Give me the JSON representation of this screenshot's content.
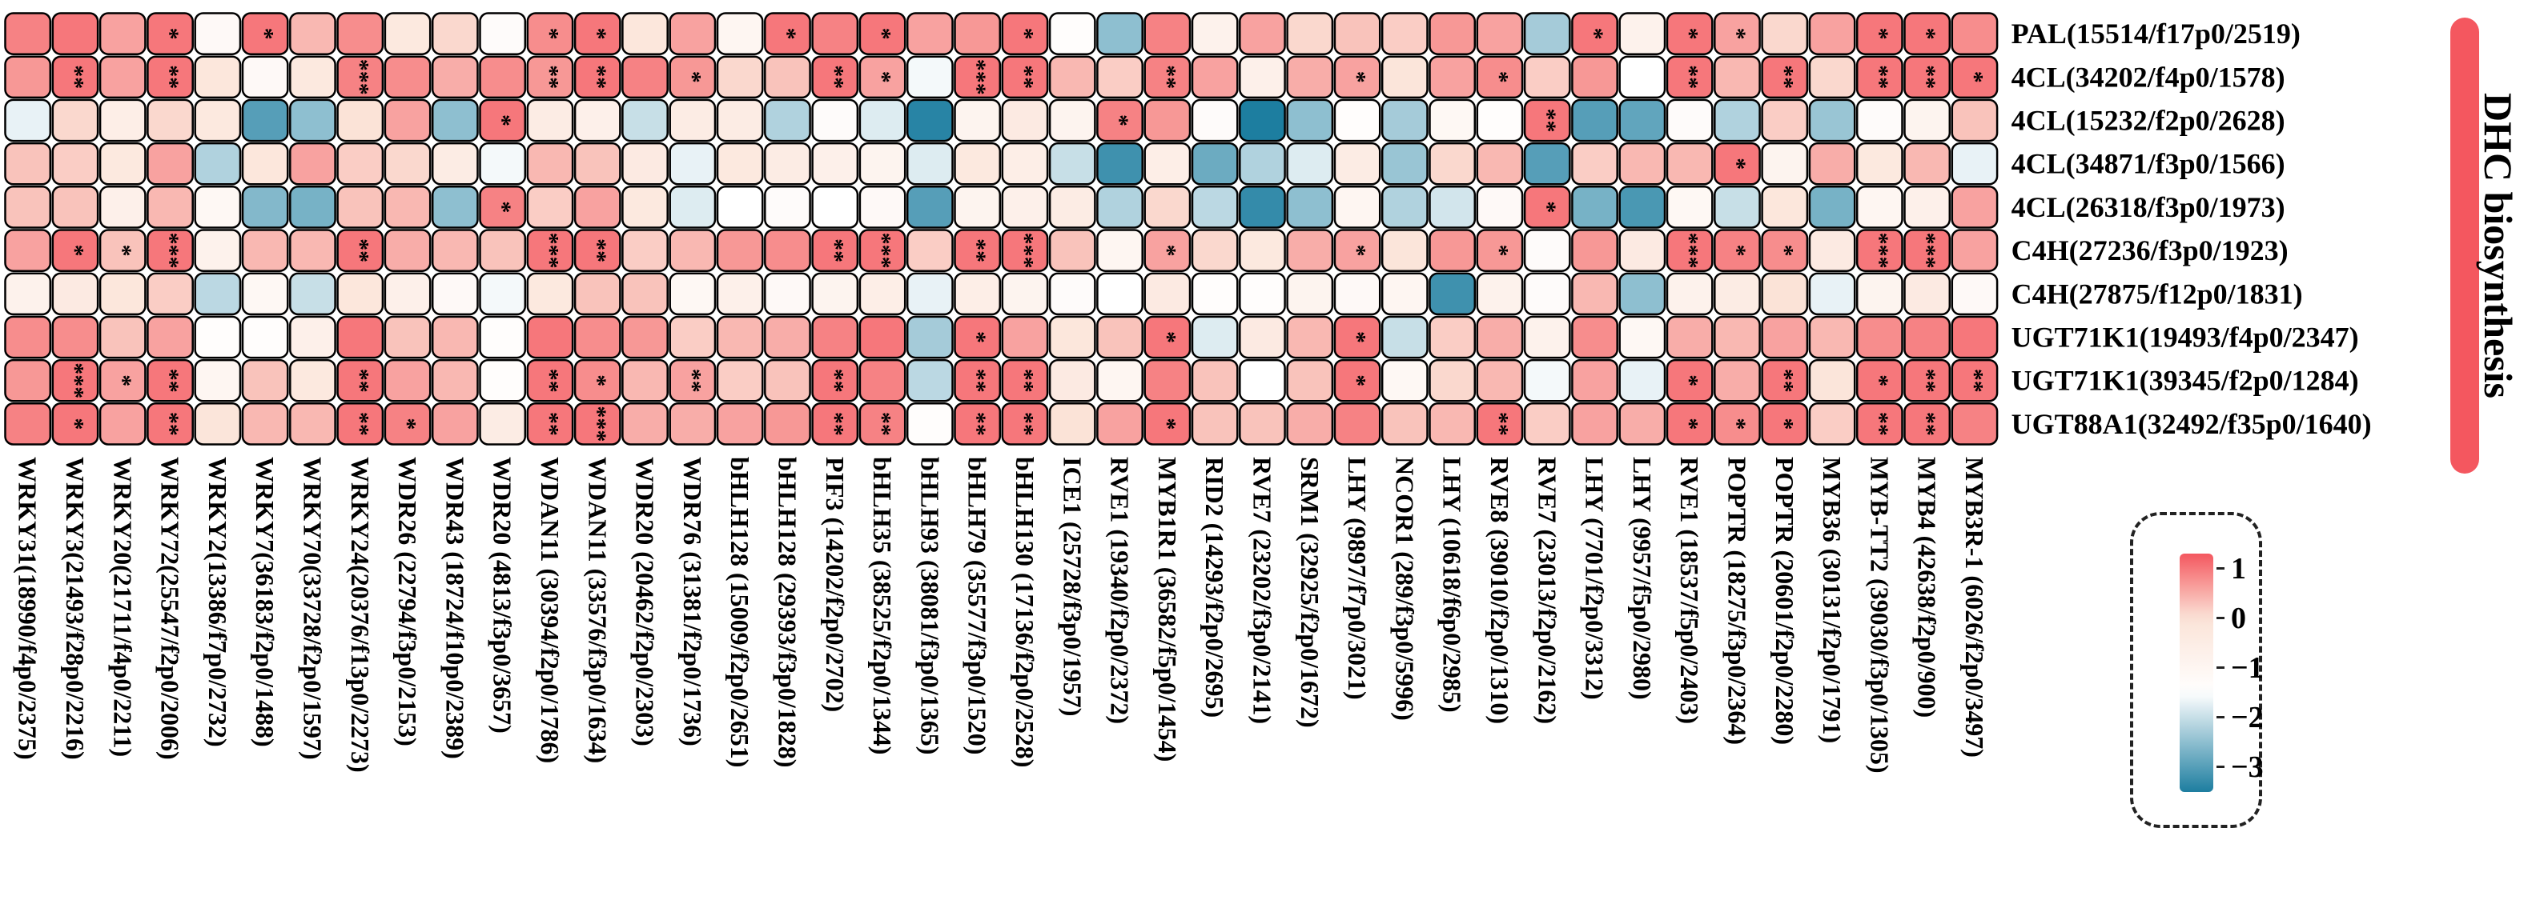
{
  "chart_data": {
    "type": "heatmap",
    "group_label": "DHC biosynthesis",
    "colors": {
      "high": "#F4575F",
      "mid": "#FBE3D7",
      "white": "#FFFFFF",
      "low": "#1D7EA0",
      "grid": "#000000",
      "band": "#F4575F"
    },
    "color_scale": {
      "min": -3.5,
      "max": 1.3,
      "ticks": [
        1,
        0,
        -1,
        -2,
        -3
      ],
      "tick_labels": [
        "1",
        "0",
        "−1",
        "−2",
        "−3"
      ]
    },
    "rows": [
      "PAL(15514/f17p0/2519)",
      "4CL(34202/f4p0/1578)",
      "4CL(15232/f2p0/2628)",
      "4CL(34871/f3p0/1566)",
      "4CL(26318/f3p0/1973)",
      "C4H(27236/f3p0/1923)",
      "C4H(27875/f12p0/1831)",
      "UGT71K1(19493/f4p0/2347)",
      "UGT71K1(39345/f2p0/1284)",
      "UGT88A1(32492/f35p0/1640)"
    ],
    "columns": [
      "WRKY31(18990/f4p0/2375)",
      "WRKY3(21493/f28p0/2216)",
      "WRKY20(21711/f4p0/2211)",
      "WRKY72(25547/f2p0/2006)",
      "WRKY2(13386/f7p0/2732)",
      "WRKY7(36183/f2p0/1488)",
      "WRKY70(33728/f2p0/1597)",
      "WRKY24(20376/f13p0/2273)",
      "WDR26 (22794/f3p0/2153)",
      "WDR43 (18724/f10p0/2389)",
      "WDR20 (4813/f3p0/3657)",
      "WDAN11 (30394/f2p0/1786)",
      "WDAN11 (33576/f3p0/1634)",
      "WDR20 (20462/f2p0/2303)",
      "WDR76 (31381/f2p0/1736)",
      "bHLH128 (15009/f2p0/2651)",
      "bHLH128 (29393/f3p0/1828)",
      "PIF3 (14202/f2p0/2702)",
      "bHLH35 (38525/f2p0/1344)",
      "bHLH93 (38081/f3p0/1365)",
      "bHLH79 (35577/f3p0/1520)",
      "bHLH130 (17136/f2p0/2528)",
      "ICE1 (25728/f3p0/1957)",
      "RVE1 (19340/f2p0/2372)",
      "MYB1R1 (36582/f5p0/1454)",
      "RID2 (14293/f2p0/2695)",
      "RVE7 (23202/f3p0/2141)",
      "SRM1 (32925/f2p0/1672)",
      "LHY (9897/f7p0/3021)",
      "NCOR1 (289/f3p0/5996)",
      "LHY (10618/f6p0/2985)",
      "RVE8 (39010/f2p0/1310)",
      "RVE7 (23013/f2p0/2162)",
      "LHY (7701/f2p0/3312)",
      "LHY (9957/f5p0/2980)",
      "RVE1 (18537/f5p0/2403)",
      "POPTR (18275/f3p0/2364)",
      "POPTR (20601/f2p0/2280)",
      "MYB36 (30131/f2p0/1791)",
      "MYB-TT2 (39030/f3p0/1305)",
      "MYB4 (42638/f2p0/900)",
      "MYB3R-1 (6026/f2p0/3497)"
    ],
    "values": [
      [
        0.9,
        1.0,
        0.6,
        1.0,
        -1.2,
        1.0,
        0.4,
        0.8,
        -0.3,
        0.1,
        -1.3,
        0.8,
        1.0,
        -0.2,
        0.6,
        -1.0,
        1.0,
        0.9,
        1.0,
        0.6,
        0.7,
        1.0,
        -1.4,
        -2.5,
        0.9,
        -0.8,
        0.6,
        0.1,
        0.3,
        0.2,
        0.7,
        0.6,
        -2.3,
        1.0,
        -0.8,
        1.0,
        0.6,
        0.1,
        0.6,
        1.0,
        1.0,
        0.8
      ],
      [
        0.7,
        1.0,
        0.6,
        1.0,
        -0.2,
        -1.2,
        -0.3,
        0.9,
        0.8,
        0.5,
        0.8,
        0.7,
        1.0,
        0.9,
        0.7,
        0.1,
        0.3,
        1.0,
        0.6,
        -1.6,
        1.0,
        1.0,
        0.4,
        0.2,
        0.9,
        0.6,
        -0.7,
        0.5,
        0.6,
        -0.1,
        0.6,
        0.8,
        0.2,
        0.7,
        -1.5,
        1.0,
        0.4,
        1.0,
        0.1,
        1.0,
        1.0,
        1.0
      ],
      [
        -1.7,
        0.1,
        -0.6,
        0.1,
        -0.3,
        -3.0,
        -2.5,
        0.0,
        0.6,
        -2.5,
        1.0,
        -0.5,
        -0.7,
        -2.0,
        -0.5,
        -0.5,
        -2.2,
        -1.3,
        -1.8,
        -3.4,
        -0.9,
        -0.4,
        -0.9,
        0.9,
        0.7,
        -1.3,
        -3.6,
        -2.5,
        -1.4,
        -2.3,
        -1.1,
        -1.4,
        1.0,
        -3.0,
        -2.9,
        -1.3,
        -2.2,
        0.2,
        -2.4,
        -1.3,
        -0.9,
        0.3
      ],
      [
        0.3,
        0.2,
        -0.3,
        0.6,
        -2.2,
        -0.2,
        0.6,
        0.2,
        0.1,
        -0.5,
        -1.6,
        0.4,
        0.3,
        -0.4,
        -1.7,
        -0.3,
        -0.5,
        -0.7,
        -0.9,
        -1.8,
        -0.3,
        -0.6,
        -2.0,
        -3.2,
        -0.6,
        -2.8,
        -2.2,
        -1.8,
        -0.5,
        -2.4,
        0.1,
        0.4,
        -3.0,
        0.2,
        0.4,
        0.4,
        1.0,
        -0.9,
        0.5,
        -0.3,
        0.4,
        -1.7
      ],
      [
        0.3,
        0.3,
        -0.7,
        0.4,
        -1.1,
        -2.6,
        -2.7,
        0.3,
        0.4,
        -2.5,
        0.9,
        0.2,
        0.6,
        -0.3,
        -1.8,
        -1.5,
        -1.3,
        -1.5,
        -1.2,
        -3.0,
        -0.9,
        -0.7,
        -0.5,
        -2.2,
        0.1,
        -2.1,
        -3.3,
        -2.5,
        -1.0,
        -2.2,
        -1.9,
        -1.2,
        1.0,
        -2.7,
        -3.1,
        -1.1,
        -2.0,
        -0.2,
        -2.7,
        -1.0,
        -0.7,
        0.6
      ],
      [
        0.6,
        1.0,
        0.3,
        1.0,
        -0.8,
        0.4,
        0.4,
        1.0,
        0.5,
        0.4,
        0.3,
        1.0,
        1.0,
        0.2,
        0.4,
        0.7,
        0.8,
        1.0,
        1.0,
        0.2,
        1.0,
        1.0,
        0.3,
        -1.0,
        0.6,
        0.1,
        -0.3,
        0.5,
        0.6,
        -0.1,
        0.7,
        0.7,
        -1.3,
        0.7,
        -0.4,
        1.0,
        0.9,
        0.8,
        -0.4,
        1.0,
        1.0,
        0.6
      ],
      [
        -0.8,
        -0.4,
        -0.2,
        0.2,
        -2.1,
        -1.1,
        -2.0,
        -0.2,
        -0.7,
        -1.2,
        -1.6,
        -0.3,
        0.3,
        0.3,
        -1.1,
        -0.7,
        -1.2,
        -0.9,
        -0.6,
        -1.7,
        -0.6,
        -0.9,
        -1.3,
        -1.5,
        -0.4,
        -1.4,
        -1.4,
        -0.9,
        -1.2,
        -1.0,
        -3.2,
        -0.8,
        -1.3,
        0.4,
        -2.5,
        -0.8,
        -0.5,
        0.0,
        -1.7,
        -0.9,
        -0.4,
        -1.2
      ],
      [
        0.8,
        0.8,
        0.3,
        0.6,
        -1.4,
        -1.4,
        -0.7,
        1.0,
        0.3,
        0.4,
        -1.4,
        1.0,
        0.8,
        0.7,
        0.2,
        0.4,
        0.5,
        0.9,
        1.0,
        -2.3,
        1.0,
        0.6,
        -0.2,
        0.3,
        1.0,
        -1.8,
        -0.4,
        0.4,
        1.0,
        -2.0,
        0.2,
        0.5,
        -0.8,
        0.8,
        -1.1,
        0.5,
        0.4,
        0.6,
        0.4,
        0.8,
        0.9,
        1.0
      ],
      [
        0.7,
        1.0,
        0.6,
        1.0,
        -1.0,
        0.3,
        -0.3,
        1.0,
        0.6,
        0.4,
        -1.4,
        1.0,
        0.8,
        0.4,
        0.6,
        0.2,
        0.3,
        1.0,
        0.9,
        -2.1,
        1.0,
        1.0,
        -0.4,
        -1.0,
        0.9,
        0.3,
        -1.5,
        0.3,
        1.0,
        -1.1,
        0.1,
        0.4,
        -1.6,
        0.6,
        -1.7,
        1.0,
        0.5,
        1.0,
        -0.1,
        1.0,
        1.0,
        1.0
      ],
      [
        0.9,
        1.0,
        0.6,
        1.0,
        -0.1,
        0.4,
        0.4,
        1.0,
        0.9,
        0.6,
        -0.5,
        1.0,
        1.0,
        0.5,
        0.5,
        0.6,
        0.7,
        1.0,
        0.9,
        -1.4,
        1.0,
        1.0,
        0.0,
        0.6,
        1.0,
        0.3,
        0.3,
        0.5,
        0.9,
        0.3,
        0.4,
        1.0,
        0.2,
        0.6,
        0.5,
        1.0,
        0.8,
        1.0,
        0.2,
        1.0,
        1.0,
        0.9
      ]
    ],
    "significance": [
      [
        "",
        "",
        "",
        "*",
        "",
        "*",
        "",
        "",
        "",
        "",
        "",
        "*",
        "*",
        "",
        "",
        "",
        "*",
        "",
        "*",
        "",
        "",
        "*",
        "",
        "",
        "",
        "",
        "",
        "",
        "",
        "",
        "",
        "",
        "",
        "*",
        "",
        "*",
        "*",
        "",
        "",
        "*",
        "*",
        ""
      ],
      [
        "",
        "**",
        "",
        "**",
        "",
        "",
        "",
        "***",
        "",
        "",
        "",
        "**",
        "**",
        "",
        "*",
        "",
        "",
        "**",
        "*",
        "",
        "***",
        "**",
        "",
        "",
        "**",
        "",
        "",
        "",
        "*",
        "",
        "",
        "*",
        "",
        "",
        "",
        "**",
        "",
        "**",
        "",
        "**",
        "**",
        "*"
      ],
      [
        "",
        "",
        "",
        "",
        "",
        "",
        "",
        "",
        "",
        "",
        "*",
        "",
        "",
        "",
        "",
        "",
        "",
        "",
        "",
        "",
        "",
        "",
        "",
        "*",
        "",
        "",
        "",
        "",
        "",
        "",
        "",
        "",
        "**",
        "",
        "",
        "",
        "",
        "",
        "",
        "",
        "",
        ""
      ],
      [
        "",
        "",
        "",
        "",
        "",
        "",
        "",
        "",
        "",
        "",
        "",
        "",
        "",
        "",
        "",
        "",
        "",
        "",
        "",
        "",
        "",
        "",
        "",
        "",
        "",
        "",
        "",
        "",
        "",
        "",
        "",
        "",
        "",
        "",
        "",
        "",
        "*",
        "",
        "",
        "",
        "",
        ""
      ],
      [
        "",
        "",
        "",
        "",
        "",
        "",
        "",
        "",
        "",
        "",
        "*",
        "",
        "",
        "",
        "",
        "",
        "",
        "",
        "",
        "",
        "",
        "",
        "",
        "",
        "",
        "",
        "",
        "",
        "",
        "",
        "",
        "",
        "*",
        "",
        "",
        "",
        "",
        "",
        "",
        "",
        "",
        ""
      ],
      [
        "",
        "*",
        "*",
        "***",
        "",
        "",
        "",
        "**",
        "",
        "",
        "",
        "***",
        "**",
        "",
        "",
        "",
        "",
        "**",
        "***",
        "",
        "**",
        "***",
        "",
        "",
        "*",
        "",
        "",
        "",
        "*",
        "",
        "",
        "*",
        "",
        "",
        "",
        "***",
        "*",
        "*",
        "",
        "***",
        "***",
        ""
      ],
      [
        "",
        "",
        "",
        "",
        "",
        "",
        "",
        "",
        "",
        "",
        "",
        "",
        "",
        "",
        "",
        "",
        "",
        "",
        "",
        "",
        "",
        "",
        "",
        "",
        "",
        "",
        "",
        "",
        "",
        "",
        "",
        "",
        "",
        "",
        "",
        "",
        "",
        "",
        "",
        "",
        "",
        ""
      ],
      [
        "",
        "",
        "",
        "",
        "",
        "",
        "",
        "",
        "",
        "",
        "",
        "",
        "",
        "",
        "",
        "",
        "",
        "",
        "",
        "",
        "*",
        "",
        "",
        "",
        "*",
        "",
        "",
        "",
        "*",
        "",
        "",
        "",
        "",
        "",
        "",
        "",
        "",
        "",
        "",
        "",
        "",
        ""
      ],
      [
        "",
        "***",
        "*",
        "**",
        "",
        "",
        "",
        "**",
        "",
        "",
        "",
        "**",
        "*",
        "",
        "**",
        "",
        "",
        "**",
        "",
        "",
        "**",
        "**",
        "",
        "",
        "",
        "",
        "",
        "",
        "*",
        "",
        "",
        "",
        "",
        "",
        "",
        "*",
        "",
        "**",
        "",
        "*",
        "**",
        "**"
      ],
      [
        "",
        "*",
        "",
        "**",
        "",
        "",
        "",
        "**",
        "*",
        "",
        "",
        "**",
        "***",
        "",
        "",
        "",
        "",
        "**",
        "**",
        "",
        "**",
        "**",
        "",
        "",
        "*",
        "",
        "",
        "",
        "",
        "",
        "",
        "**",
        "",
        "",
        "",
        "*",
        "*",
        "*",
        "",
        "**",
        "**",
        ""
      ]
    ]
  }
}
